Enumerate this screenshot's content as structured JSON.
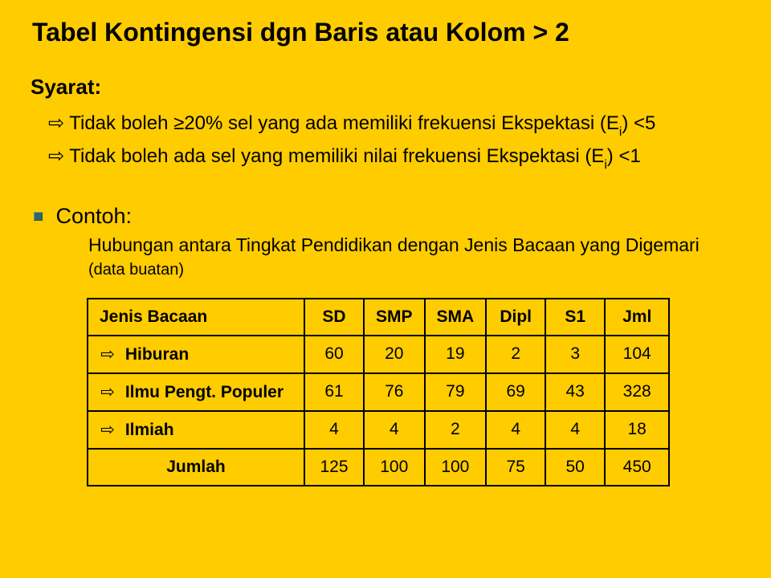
{
  "title": "Tabel Kontingensi dgn Baris atau Kolom > 2",
  "syarat": {
    "label": "Syarat:",
    "items": [
      {
        "text_pre": "Tidak boleh ≥20% sel yang ada memiliki frekuensi Ekspektasi (E",
        "sub": "i",
        "text_post": ") <5"
      },
      {
        "text_pre": "Tidak boleh ada sel yang memiliki nilai frekuensi Ekspektasi (E",
        "sub": "i",
        "text_post": ") <1"
      }
    ]
  },
  "contoh": {
    "label": "Contoh:",
    "desc_main": "Hubungan antara Tingkat Pendidikan dengan Jenis Bacaan yang Digemari",
    "desc_note": "(data buatan)"
  },
  "table": {
    "type": "table",
    "columns": [
      "Jenis Bacaan",
      "SD",
      "SMP",
      "SMA",
      "Dipl",
      "S1",
      "Jml"
    ],
    "rows": [
      {
        "label": "Hiburan",
        "arrow": true,
        "values": [
          "60",
          "20",
          "19",
          "2",
          "3",
          "104"
        ]
      },
      {
        "label": "Ilmu Pengt. Populer",
        "arrow": true,
        "values": [
          "61",
          "76",
          "79",
          "69",
          "43",
          "328"
        ]
      },
      {
        "label": "Ilmiah",
        "arrow": true,
        "values": [
          "4",
          "4",
          "2",
          "4",
          "4",
          "18"
        ]
      }
    ],
    "total": {
      "label": "Jumlah",
      "values": [
        "125",
        "100",
        "100",
        "75",
        "50",
        "450"
      ]
    },
    "border_color": "#000000",
    "background_color": "#ffcc00",
    "header_fontweight": "bold",
    "cell_fontsize": 21
  },
  "colors": {
    "slide_background": "#ffcc00",
    "text": "#000000",
    "bullet_square": "#336666"
  },
  "glyphs": {
    "arrow": "⇨"
  }
}
